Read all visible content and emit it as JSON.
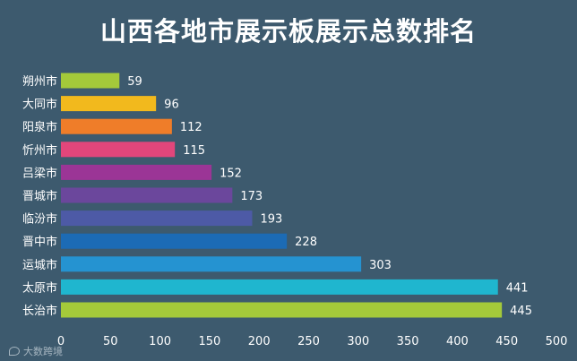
{
  "chart_data": {
    "type": "bar",
    "orientation": "horizontal",
    "title": "山西各地市展示板展示总数排名",
    "categories": [
      "朔州市",
      "大同市",
      "阳泉市",
      "忻州市",
      "吕梁市",
      "晋城市",
      "临汾市",
      "晋中市",
      "运城市",
      "太原市",
      "长治市"
    ],
    "values": [
      59,
      96,
      112,
      115,
      152,
      173,
      193,
      228,
      303,
      441,
      445
    ],
    "colors": [
      "#a4c93a",
      "#f2b91d",
      "#ef7d29",
      "#e2467b",
      "#9b3596",
      "#6b479c",
      "#4d5aa6",
      "#1c6bb5",
      "#2593d1",
      "#1fb6cf",
      "#a4c93a"
    ],
    "xlim": [
      0,
      500
    ],
    "xticks": [
      0,
      50,
      100,
      150,
      200,
      250,
      300,
      350,
      400,
      450,
      500
    ],
    "xlabel": "",
    "ylabel": "",
    "grid": false,
    "legend": "none"
  },
  "watermark": "大数跨境"
}
